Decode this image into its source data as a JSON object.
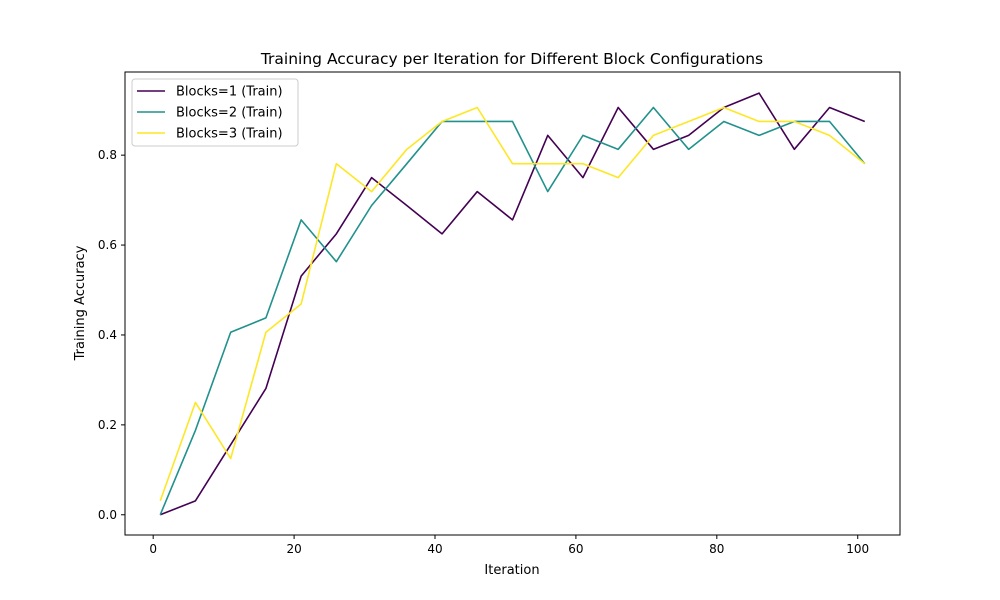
{
  "chart_data": {
    "type": "line",
    "title": "Training Accuracy per Iteration for Different Block Configurations",
    "xlabel": "Iteration",
    "ylabel": "Training Accuracy",
    "xlim": [
      -4,
      106
    ],
    "ylim": [
      -0.045,
      0.985
    ],
    "xticks": [
      0,
      20,
      40,
      60,
      80,
      100
    ],
    "yticks": [
      0.0,
      0.2,
      0.4,
      0.6,
      0.8
    ],
    "grid": false,
    "legend_position": "top-left",
    "x": [
      1,
      6,
      11,
      16,
      21,
      26,
      31,
      36,
      41,
      46,
      51,
      56,
      61,
      66,
      71,
      76,
      81,
      86,
      91,
      96,
      101
    ],
    "series": [
      {
        "name": "Blocks=1 (Train)",
        "color": "#440154",
        "values": [
          0.0,
          0.031,
          0.156,
          0.281,
          0.531,
          0.625,
          0.75,
          0.688,
          0.625,
          0.719,
          0.656,
          0.844,
          0.75,
          0.906,
          0.813,
          0.844,
          0.906,
          0.938,
          0.813,
          0.906,
          0.875
        ]
      },
      {
        "name": "Blocks=2 (Train)",
        "color": "#21918c",
        "values": [
          0.0,
          0.188,
          0.406,
          0.438,
          0.656,
          0.563,
          0.688,
          0.781,
          0.875,
          0.875,
          0.875,
          0.719,
          0.844,
          0.813,
          0.906,
          0.813,
          0.875,
          0.844,
          0.875,
          0.875,
          0.781
        ]
      },
      {
        "name": "Blocks=3 (Train)",
        "color": "#fde725",
        "values": [
          0.031,
          0.25,
          0.125,
          0.406,
          0.469,
          0.781,
          0.719,
          0.813,
          0.875,
          0.906,
          0.781,
          0.781,
          0.781,
          0.75,
          0.844,
          0.875,
          0.906,
          0.875,
          0.875,
          0.844,
          0.781
        ]
      }
    ]
  }
}
